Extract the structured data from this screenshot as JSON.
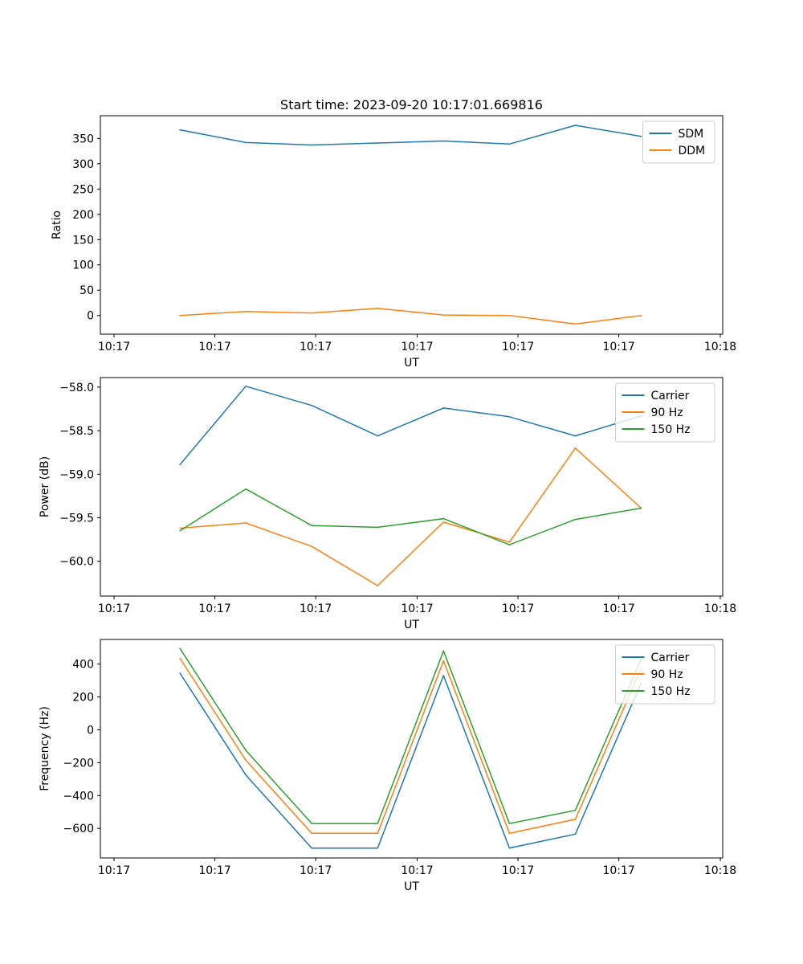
{
  "chart_data": [
    {
      "type": "line",
      "title": "Start time: 2023-09-20 10:17:01.669816",
      "xlabel": "UT",
      "ylabel": "Ratio",
      "x": [
        1,
        2,
        3,
        4,
        5,
        6,
        7,
        8
      ],
      "xlim": [
        0.0,
        9.2
      ],
      "x_ticks": [
        {
          "x": 0.0,
          "label": "10:17"
        },
        {
          "x": 1.53,
          "label": "10:17"
        },
        {
          "x": 3.06,
          "label": "10:17"
        },
        {
          "x": 4.6,
          "label": "10:17"
        },
        {
          "x": 6.13,
          "label": "10:17"
        },
        {
          "x": 7.66,
          "label": "10:17"
        },
        {
          "x": 9.2,
          "label": "10:18"
        }
      ],
      "ylim": [
        -37,
        395
      ],
      "y_ticks": [
        0,
        50,
        100,
        150,
        200,
        250,
        300,
        350
      ],
      "legend": "top-right",
      "series": [
        {
          "name": "SDM",
          "color": "#1f77b4",
          "values": [
            367,
            342,
            337,
            341,
            345,
            339,
            376,
            354
          ]
        },
        {
          "name": "DDM",
          "color": "#ff7f0e",
          "values": [
            0,
            8,
            5,
            14,
            1,
            0,
            -17,
            0
          ]
        }
      ]
    },
    {
      "type": "line",
      "title": "",
      "xlabel": "UT",
      "ylabel": "Power (dB)",
      "x": [
        1,
        2,
        3,
        4,
        5,
        6,
        7,
        8
      ],
      "xlim": [
        0.0,
        9.2
      ],
      "x_ticks": [
        {
          "x": 0.0,
          "label": "10:17"
        },
        {
          "x": 1.53,
          "label": "10:17"
        },
        {
          "x": 3.06,
          "label": "10:17"
        },
        {
          "x": 4.6,
          "label": "10:17"
        },
        {
          "x": 6.13,
          "label": "10:17"
        },
        {
          "x": 7.66,
          "label": "10:17"
        },
        {
          "x": 9.2,
          "label": "10:18"
        }
      ],
      "ylim": [
        -60.4,
        -57.89
      ],
      "y_ticks": [
        -60.0,
        -59.5,
        -59.0,
        -58.5,
        -58.0
      ],
      "y_tick_labels": [
        "−60.0",
        "−59.5",
        "−59.0",
        "−58.5",
        "−58.0"
      ],
      "legend": "top-right",
      "series": [
        {
          "name": "Carrier",
          "color": "#1f77b4",
          "values": [
            -58.89,
            -57.99,
            -58.21,
            -58.56,
            -58.24,
            -58.34,
            -58.56,
            -58.33
          ]
        },
        {
          "name": "90 Hz",
          "color": "#ff7f0e",
          "values": [
            -59.62,
            -59.56,
            -59.83,
            -60.28,
            -59.55,
            -59.78,
            -58.7,
            -59.39
          ]
        },
        {
          "name": "150 Hz",
          "color": "#2ca02c",
          "values": [
            -59.65,
            -59.17,
            -59.59,
            -59.61,
            -59.51,
            -59.81,
            -59.52,
            -59.39
          ]
        }
      ]
    },
    {
      "type": "line",
      "title": "",
      "xlabel": "UT",
      "ylabel": "Frequency (Hz)",
      "x": [
        1,
        2,
        3,
        4,
        5,
        6,
        7,
        8
      ],
      "xlim": [
        0.0,
        9.2
      ],
      "x_ticks": [
        {
          "x": 0.0,
          "label": "10:17"
        },
        {
          "x": 1.53,
          "label": "10:17"
        },
        {
          "x": 3.06,
          "label": "10:17"
        },
        {
          "x": 4.6,
          "label": "10:17"
        },
        {
          "x": 6.13,
          "label": "10:17"
        },
        {
          "x": 7.66,
          "label": "10:17"
        },
        {
          "x": 9.2,
          "label": "10:18"
        }
      ],
      "ylim": [
        -780,
        550
      ],
      "y_ticks": [
        -600,
        -400,
        -200,
        0,
        200,
        400
      ],
      "y_tick_labels": [
        "−600",
        "−400",
        "−200",
        "0",
        "200",
        "400"
      ],
      "legend": "top-right",
      "series": [
        {
          "name": "Carrier",
          "color": "#1f77b4",
          "values": [
            345,
            -275,
            -720,
            -720,
            330,
            -720,
            -635,
            285
          ]
        },
        {
          "name": "90 Hz",
          "color": "#ff7f0e",
          "values": [
            435,
            -185,
            -630,
            -630,
            420,
            -630,
            -545,
            375
          ]
        },
        {
          "name": "150 Hz",
          "color": "#2ca02c",
          "values": [
            495,
            -125,
            -570,
            -570,
            480,
            -570,
            -490,
            430
          ]
        }
      ]
    }
  ]
}
